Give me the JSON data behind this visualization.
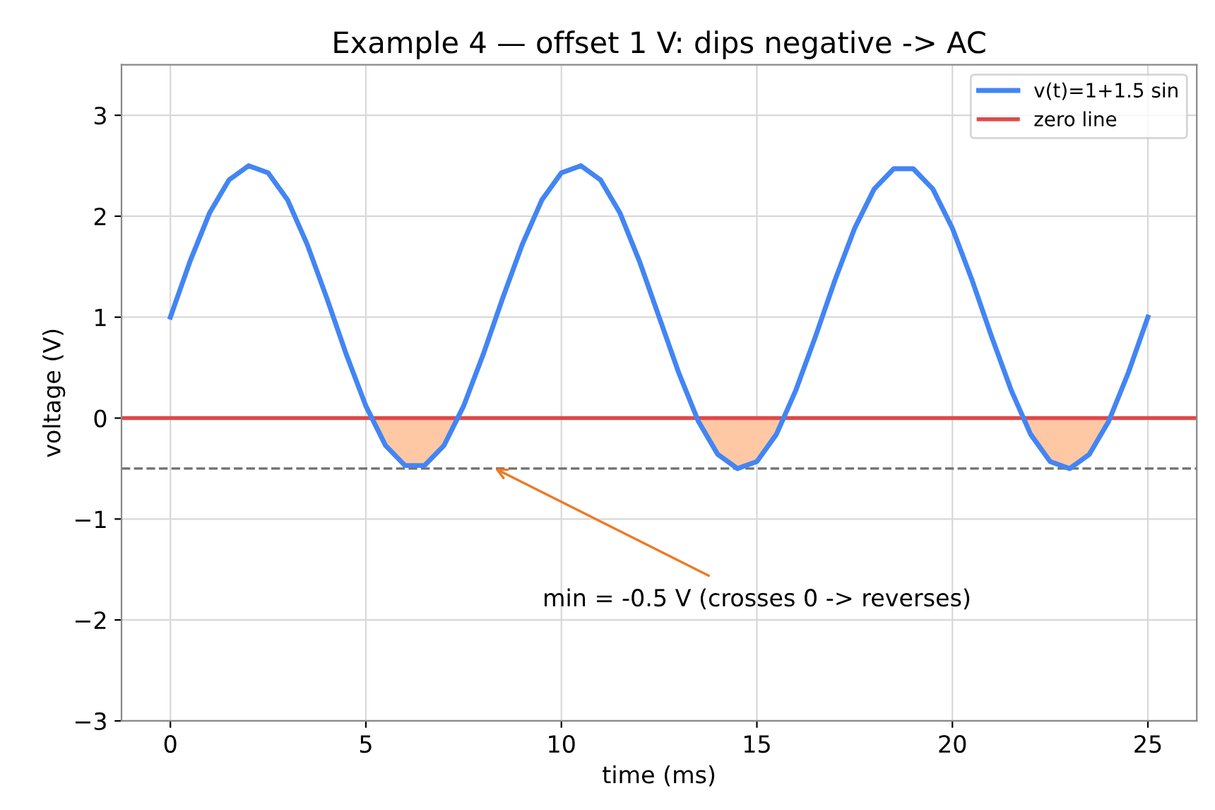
{
  "chart_data": {
    "type": "line",
    "title": "Example 4 — offset 1 V: dips negative -> AC",
    "xlabel": "time (ms)",
    "ylabel": "voltage (V)",
    "x": [
      0,
      0.5,
      1,
      1.5,
      2,
      2.5,
      3,
      3.5,
      4,
      4.5,
      5,
      5.5,
      6,
      6.5,
      7,
      7.5,
      8,
      8.5,
      9,
      9.5,
      10,
      10.5,
      11,
      11.5,
      12,
      12.5,
      13,
      13.5,
      14,
      14.5,
      15,
      15.5,
      16,
      16.5,
      17,
      17.5,
      18,
      18.5,
      19,
      19.5,
      20,
      20.5,
      21,
      21.5,
      22,
      22.5,
      23,
      23.5,
      24,
      24.5,
      25
    ],
    "series": [
      {
        "name": "v(t)=1+1.5 sin",
        "color": "#4285f4",
        "values": [
          1,
          1.55,
          2.03,
          2.36,
          2.5,
          2.43,
          2.16,
          1.72,
          1.19,
          0.63,
          0.12,
          -0.27,
          -0.47,
          -0.47,
          -0.27,
          0.12,
          0.63,
          1.19,
          1.72,
          2.16,
          2.43,
          2.5,
          2.36,
          2.03,
          1.55,
          1,
          0.45,
          -0.03,
          -0.36,
          -0.5,
          -0.43,
          -0.16,
          0.28,
          0.81,
          1.37,
          1.88,
          2.27,
          2.47,
          2.47,
          2.27,
          1.88,
          1.37,
          0.81,
          0.28,
          -0.16,
          -0.43,
          -0.5,
          -0.36,
          -0.03,
          0.45,
          1
        ]
      },
      {
        "type": "area",
        "color": "#ffc8a4",
        "x": [
          5.13,
          5.5,
          6,
          6.5,
          7,
          7.37,
          null,
          13.47,
          13.5,
          14,
          14.5,
          15,
          15.5,
          15.7,
          null,
          21.8,
          22,
          22.5,
          23,
          23.5,
          24,
          24.03
        ],
        "values": [
          0,
          -0.27,
          -0.47,
          -0.47,
          -0.27,
          0,
          null,
          0,
          -0.03,
          -0.36,
          -0.5,
          -0.43,
          -0.16,
          0,
          null,
          0,
          -0.16,
          -0.43,
          -0.5,
          -0.36,
          -0.03,
          0
        ]
      }
    ],
    "ref_lines": [
      {
        "axis": "y",
        "value": 0,
        "label": "zero line",
        "color": "#e04848",
        "line_style": "solid"
      },
      {
        "axis": "y",
        "value": -0.5,
        "color": "#707070",
        "line_style": "dashed"
      }
    ],
    "annotations": [
      {
        "text": "min = -0.5 V (crosses 0 -> reverses)",
        "x": 8.3,
        "y": -0.5
      }
    ],
    "xlim": [
      -1.25,
      26.25
    ],
    "xticks": [
      0,
      5,
      10,
      15,
      20,
      25
    ],
    "ylim": [
      -3,
      3.5
    ],
    "yticks": [
      {
        "value": -3,
        "label": "−3"
      },
      {
        "value": -2,
        "label": "−2"
      },
      {
        "value": -1,
        "label": "−1"
      },
      0,
      1,
      2,
      3
    ],
    "grid": true,
    "legend": "top right"
  }
}
